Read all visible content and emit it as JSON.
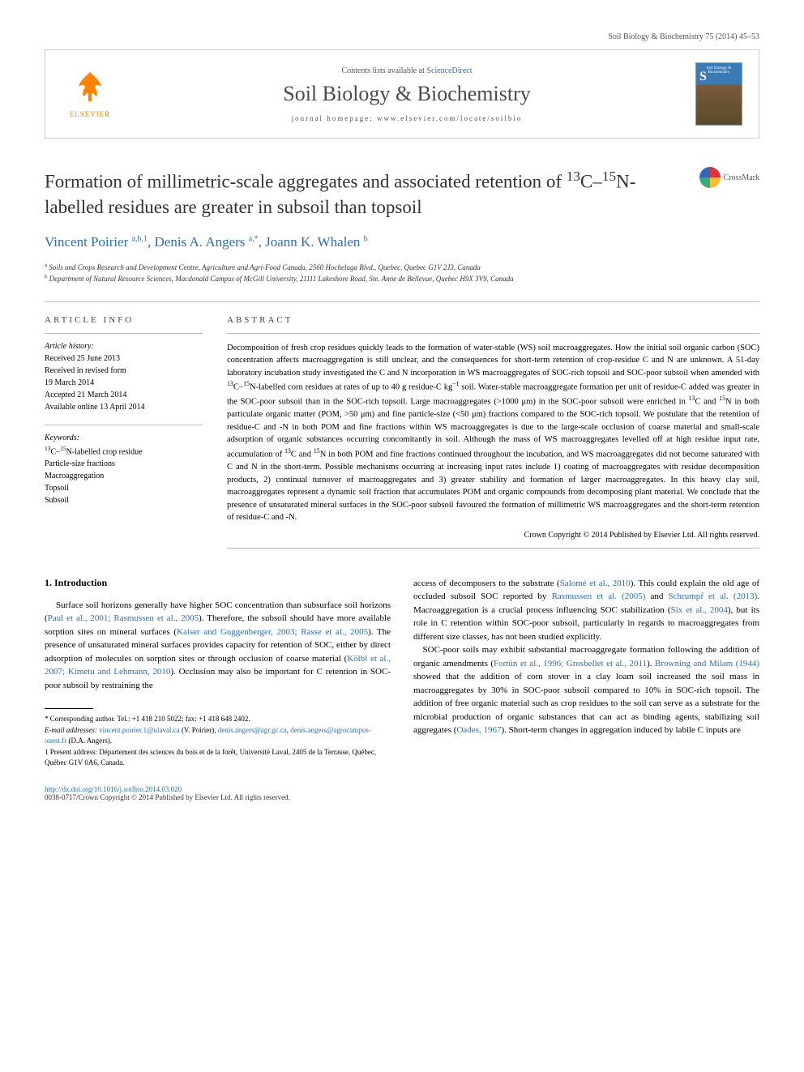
{
  "header": {
    "citation": "Soil Biology & Biochemistry 75 (2014) 45–53"
  },
  "banner": {
    "elsevier": "ELSEVIER",
    "contents_prefix": "Contents lists available at ",
    "contents_link": "ScienceDirect",
    "journal_name": "Soil Biology & Biochemistry",
    "homepage_prefix": "journal homepage: ",
    "homepage_url": "www.elsevier.com/locate/soilbio",
    "cover_label": "Soil Biology & Biochemistry"
  },
  "article": {
    "title_html": "Formation of millimetric-scale aggregates and associated retention of <sup>13</sup>C–<sup>15</sup>N-labelled residues are greater in subsoil than topsoil",
    "crossmark": "CrossMark",
    "authors_html": "Vincent Poirier <sup>a,b,1</sup>, Denis A. Angers <sup>a,*</sup>, Joann K. Whalen <sup>b</sup>",
    "affiliations": [
      "a Soils and Crops Research and Development Centre, Agriculture and Agri-Food Canada, 2560 Hochelaga Blvd., Quebec, Quebec G1V 2J3, Canada",
      "b Department of Natural Resource Sciences, Macdonald Campus of McGill University, 21111 Lakeshore Road, Ste. Anne de Bellevue, Quebec H9X 3V9, Canada"
    ]
  },
  "info": {
    "heading": "ARTICLE INFO",
    "history_label": "Article history:",
    "history": "Received 25 June 2013\nReceived in revised form\n19 March 2014\nAccepted 21 March 2014\nAvailable online 13 April 2014",
    "keywords_label": "Keywords:",
    "keywords_html": "<sup>13</sup>C–<sup>15</sup>N-labelled crop residue<br>Particle-size fractions<br>Macroaggregation<br>Topsoil<br>Subsoil"
  },
  "abstract": {
    "heading": "ABSTRACT",
    "text_html": "Decomposition of fresh crop residues quickly leads to the formation of water-stable (WS) soil macroaggregates. How the initial soil organic carbon (SOC) concentration affects macroaggregation is still unclear, and the consequences for short-term retention of crop-residue C and N are unknown. A 51-day laboratory incubation study investigated the C and N incorporation in WS macroaggregates of SOC-rich topsoil and SOC-poor subsoil when amended with <sup>13</sup>C–<sup>15</sup>N-labelled corn residues at rates of up to 40 g residue-C kg<sup>−1</sup> soil. Water-stable macroaggregate formation per unit of residue-C added was greater in the SOC-poor subsoil than in the SOC-rich topsoil. Large macroaggregates (>1000 μm) in the SOC-poor subsoil were enriched in <sup>13</sup>C and <sup>15</sup>N in both particulate organic matter (POM, >50 μm) and fine particle-size (<50 μm) fractions compared to the SOC-rich topsoil. We postulate that the retention of residue-C and -N in both POM and fine fractions within WS macroaggregates is due to the large-scale occlusion of coarse material and small-scale adsorption of organic substances occurring concomitantly in soil. Although the mass of WS macroaggregates levelled off at high residue input rate, accumulation of <sup>13</sup>C and <sup>15</sup>N in both POM and fine fractions continued throughout the incubation, and WS macroaggregates did not become saturated with C and N in the short-term. Possible mechanisms occurring at increasing input rates include 1) coating of macroaggregates with residue decomposition products, 2) continual turnover of macroaggregates and 3) greater stability and formation of larger macroaggregates. In this heavy clay soil, macroaggregates represent a dynamic soil fraction that accumulates POM and organic compounds from decomposing plant material. We conclude that the presence of unsaturated mineral surfaces in the SOC-poor subsoil favoured the formation of millimetric WS macroaggregates and the short-term retention of residue-C and -N.",
    "copyright": "Crown Copyright © 2014 Published by Elsevier Ltd. All rights reserved."
  },
  "body": {
    "section_heading": "1. Introduction",
    "col1_html": "Surface soil horizons generally have higher SOC concentration than subsurface soil horizons (<a>Paul et al., 2001; Rasmussen et al., 2005</a>). Therefore, the subsoil should have more available sorption sites on mineral surfaces (<a>Kaiser and Guggenberger, 2003; Rasse et al., 2005</a>). The presence of unsaturated mineral surfaces provides capacity for retention of SOC, either by direct adsorption of molecules on sorption sites or through occlusion of coarse material (<a>Kölbl et al., 2007; Kimetu and Lehmann, 2010</a>). Occlusion may also be important for C retention in SOC-poor subsoil by restraining the",
    "col2_html": "access of decomposers to the substrate (<a>Salomé et al., 2010</a>). This could explain the old age of occluded subsoil SOC reported by <a>Rasmussen et al. (2005)</a> and <a>Schrumpf et al. (2013)</a>. Macroaggregation is a crucial process influencing SOC stabilization (<a>Six et al., 2004</a>), but its role in C retention within SOC-poor subsoil, particularly in regards to macroaggregates from different size classes, has not been studied explicitly.<br>&nbsp;&nbsp;&nbsp;SOC-poor soils may exhibit substantial macroaggregate formation following the addition of organic amendments (<a>Fortún et al., 1996; Grosbellet et al., 2011</a>). <a>Browning and Milam (1944)</a> showed that the addition of corn stover in a clay loam soil increased the soil mass in macroaggregates by 30% in SOC-poor subsoil compared to 10% in SOC-rich topsoil. The addition of free organic material such as crop residues to the soil can serve as a substrate for the microbial production of organic substances that can act as binding agents, stabilizing soil aggregates (<a>Oades, 1967</a>). Short-term changes in aggregation induced by labile C inputs are"
  },
  "footnotes": {
    "corresponding": "* Corresponding author. Tel.: +1 418 210 5022; fax: +1 418 648 2402.",
    "email_label": "E-mail addresses:",
    "emails_html": "<a>vincent.poirier.1@ulaval.ca</a> (V. Poirier), <a>denis.angers@agr.gc.ca</a>, <a>denis.angers@agrocampus-ouest.fr</a> (D.A. Angers).",
    "present": "1 Present address: Département des sciences du bois et de la forêt, Université Laval, 2405 de la Terrasse, Québec, Québec G1V 0A6, Canada."
  },
  "footer": {
    "doi": "http://dx.doi.org/10.1016/j.soilbio.2014.03.020",
    "issn": "0038-0717/Crown Copyright © 2014 Published by Elsevier Ltd. All rights reserved."
  },
  "colors": {
    "link": "#2a6fb5",
    "elsevier": "#ff8200",
    "text": "#000000",
    "muted": "#555555"
  }
}
